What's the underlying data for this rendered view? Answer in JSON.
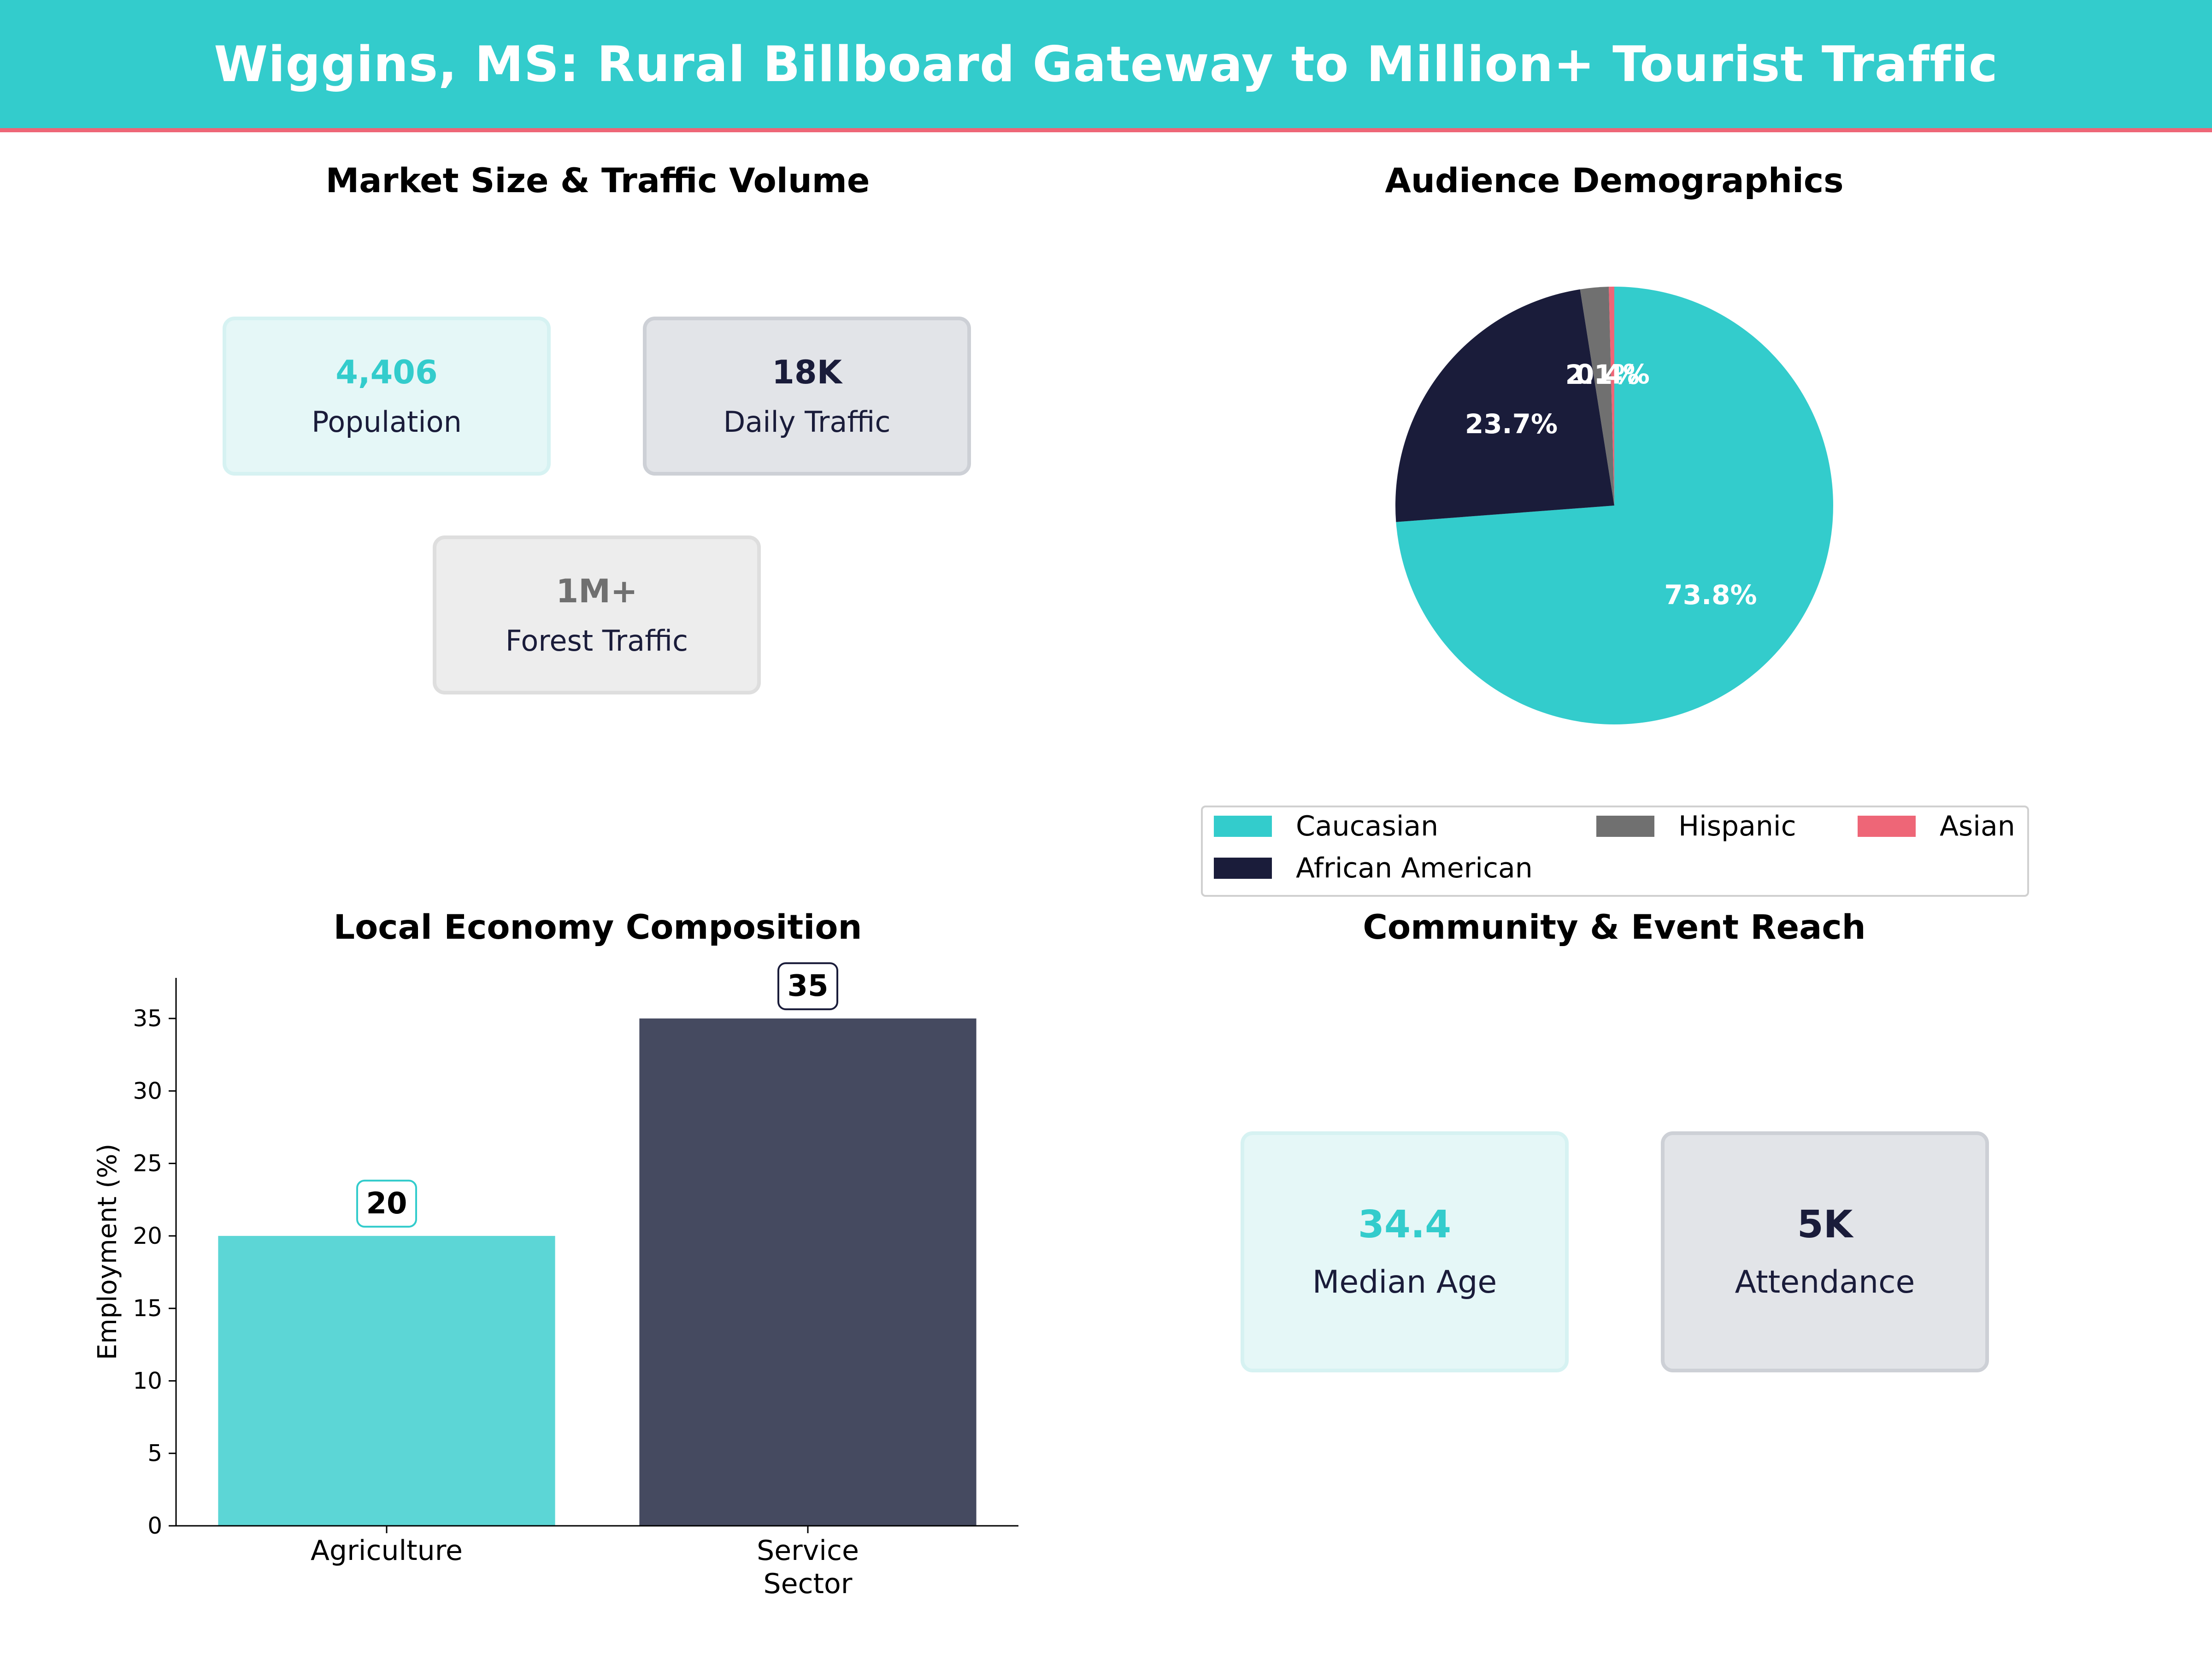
{
  "header": {
    "title": "Wiggins, MS: Rural Billboard Gateway to Million+ Tourist Traffic"
  },
  "colors": {
    "teal": "#33cccc",
    "navy": "#1a1c3a",
    "grey": "#707070",
    "red": "#ee6677"
  },
  "market": {
    "title": "Market Size & Traffic Volume",
    "cards": [
      {
        "value": "4,406",
        "label": "Population",
        "color": "#33cccc"
      },
      {
        "value": "18K",
        "label": "Daily Traffic",
        "color": "#1a1c3a"
      },
      {
        "value": "1M+",
        "label": "Forest Traffic",
        "color": "#707070"
      }
    ]
  },
  "demographics": {
    "title": "Audience Demographics",
    "legend": [
      "Caucasian",
      "African American",
      "Hispanic",
      "Asian"
    ]
  },
  "economy": {
    "title": "Local Economy Composition"
  },
  "community": {
    "title": "Community & Event Reach",
    "cards": [
      {
        "value": "34.4",
        "label": "Median Age",
        "color": "#33cccc"
      },
      {
        "value": "5K",
        "label": "Attendance",
        "color": "#1a1c3a"
      }
    ]
  },
  "chart_data": [
    {
      "type": "pie",
      "title": "Audience Demographics",
      "labels": [
        "Caucasian",
        "African American",
        "Hispanic",
        "Asian"
      ],
      "values": [
        73.8,
        23.7,
        2.1,
        0.4
      ],
      "value_labels": [
        "73.8%",
        "23.7%",
        "2.1%",
        "0.4%"
      ],
      "colors": [
        "#33cccc",
        "#1a1c3a",
        "#707070",
        "#ee6677"
      ],
      "start_angle_deg": 90,
      "direction": "clockwise",
      "legend_placement": "bottom"
    },
    {
      "type": "bar",
      "title": "Local Economy Composition",
      "categories": [
        "Agriculture",
        "Service Sector"
      ],
      "category_labels": [
        [
          "Agriculture"
        ],
        [
          "Service",
          "Sector"
        ]
      ],
      "values": [
        20,
        35
      ],
      "colors": [
        "#5cd6d6",
        "#454a60"
      ],
      "label_border_colors": [
        "#33cccc",
        "#1a1c3a"
      ],
      "ylabel": "Employment (%)",
      "ylim": [
        0,
        37.8
      ],
      "yticks": [
        0,
        5,
        10,
        15,
        20,
        25,
        30,
        35
      ],
      "grid": false
    }
  ]
}
